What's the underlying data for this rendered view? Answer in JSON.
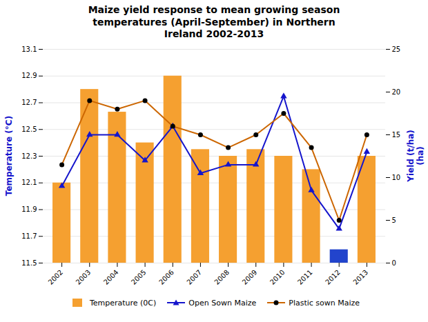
{
  "chart_data": {
    "type": "bar",
    "title": "Maize yield response to mean growing season\ntemperatures (April-September) in Northern\nIreland 2002-2013",
    "categories": [
      "2002",
      "2003",
      "2004",
      "2005",
      "2006",
      "2007",
      "2008",
      "2009",
      "2010",
      "2011",
      "2012",
      "2013"
    ],
    "series": [
      {
        "name": "Temperature  (0C)",
        "type": "bar",
        "color": "#F5A030",
        "colors": [
          "#F5A030",
          "#F5A030",
          "#F5A030",
          "#F5A030",
          "#F5A030",
          "#F5A030",
          "#F5A030",
          "#F5A030",
          "#F5A030",
          "#F5A030",
          "#2244CC",
          "#F5A030"
        ],
        "values": [
          12.1,
          12.8,
          12.63,
          12.4,
          12.9,
          12.35,
          12.3,
          12.35,
          12.3,
          12.2,
          11.6,
          12.3
        ]
      },
      {
        "name": "Open Sown Maize",
        "type": "line",
        "axis": "y2",
        "color": "#1515CC",
        "marker": "triangle",
        "values": [
          9.0,
          15.0,
          15.0,
          12.0,
          16.0,
          10.5,
          11.5,
          11.5,
          19.5,
          8.5,
          4.0,
          13.0
        ]
      },
      {
        "name": "Plastic sown Maize",
        "type": "line",
        "axis": "y2",
        "color": "#CC6600",
        "marker": "circle",
        "values": [
          11.5,
          19.0,
          18.0,
          19.0,
          16.0,
          15.0,
          13.5,
          15.0,
          17.5,
          13.5,
          5.0,
          15.0
        ]
      }
    ],
    "ylabel": "Temperature (°C)",
    "y2label": "Yield (t/ha)\n(ha)",
    "ylim": [
      11.5,
      13.1
    ],
    "yticks": [
      11.5,
      11.7,
      11.9,
      12.1,
      12.3,
      12.5,
      12.7,
      12.9,
      13.1
    ],
    "y2lim": [
      0,
      25
    ],
    "y2ticks": [
      0,
      5,
      10,
      15,
      20,
      25
    ],
    "grid": true,
    "legend": "bottom"
  }
}
